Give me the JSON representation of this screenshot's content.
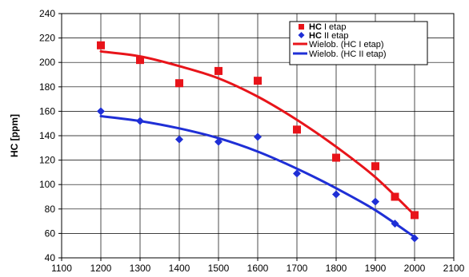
{
  "chart_data": {
    "type": "scatter",
    "ylabel": "HC [ppm]",
    "xlabel": "",
    "xlim": [
      1100,
      2100
    ],
    "ylim": [
      40,
      240
    ],
    "xticks": [
      1100,
      1200,
      1300,
      1400,
      1500,
      1600,
      1700,
      1800,
      1900,
      2000,
      2100
    ],
    "yticks": [
      40,
      60,
      80,
      100,
      120,
      140,
      160,
      180,
      200,
      220,
      240
    ],
    "grid": true,
    "legend_position": "top-right",
    "series": [
      {
        "name_prefix": "HC",
        "name_suffix": " I etap",
        "marker": "square",
        "color": "#e8141a",
        "points": [
          [
            1200,
            214
          ],
          [
            1300,
            202
          ],
          [
            1400,
            183
          ],
          [
            1500,
            193
          ],
          [
            1600,
            185
          ],
          [
            1700,
            145
          ],
          [
            1800,
            122
          ],
          [
            1900,
            115
          ],
          [
            1950,
            90
          ],
          [
            2000,
            75
          ]
        ]
      },
      {
        "name_prefix": "HC",
        "name_suffix": " II etap",
        "marker": "diamond",
        "color": "#1f2fd6",
        "points": [
          [
            1200,
            160
          ],
          [
            1300,
            152
          ],
          [
            1400,
            137
          ],
          [
            1500,
            135
          ],
          [
            1600,
            139
          ],
          [
            1700,
            109
          ],
          [
            1800,
            92
          ],
          [
            1900,
            86
          ],
          [
            1950,
            68
          ],
          [
            2000,
            56
          ]
        ]
      }
    ],
    "trendlines": [
      {
        "name": "Wielob. (HC I etap)",
        "color": "#e8141a",
        "x": [
          1200,
          1300,
          1400,
          1500,
          1600,
          1700,
          1800,
          1900,
          2000
        ],
        "y": [
          209,
          205,
          197,
          187,
          172,
          153,
          131,
          106,
          75
        ]
      },
      {
        "name": "Wielob. (HC II etap)",
        "color": "#1f2fd6",
        "x": [
          1200,
          1300,
          1400,
          1500,
          1600,
          1700,
          1800,
          1900,
          2000
        ],
        "y": [
          156,
          152,
          146,
          138,
          127,
          113,
          97,
          79,
          57
        ]
      }
    ]
  }
}
